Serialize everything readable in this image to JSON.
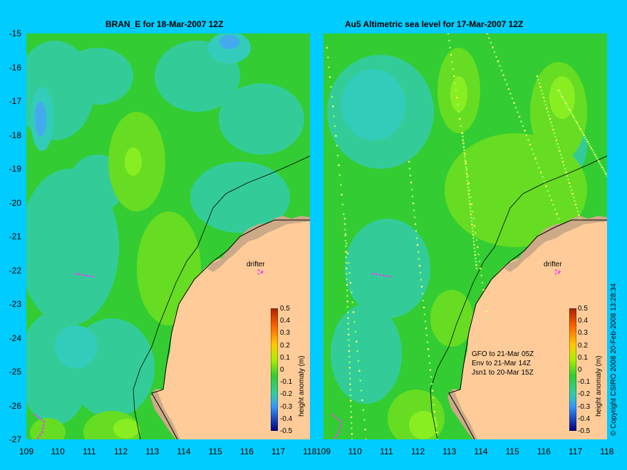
{
  "left_panel": {
    "title": "BRAN_E for 18-Mar-2007 12Z"
  },
  "right_panel": {
    "title": "Au5 Altimetric sea level  for 17-Mar-2007 12Z"
  },
  "y_ticks": [
    "-15",
    "-16",
    "-17",
    "-18",
    "-19",
    "-20",
    "-21",
    "-22",
    "-23",
    "-24",
    "-25",
    "-26",
    "-27"
  ],
  "x_ticks": [
    "109",
    "110",
    "111",
    "112",
    "113",
    "114",
    "115",
    "116",
    "117",
    "118"
  ],
  "colorbar": {
    "label": "height anomaly (m)",
    "ticks": [
      "0.5",
      "0.4",
      "0.3",
      "0.2",
      "0.1",
      "0",
      "-0.1",
      "-0.2",
      "-0.3",
      "-0.4",
      "-0.5"
    ]
  },
  "drifter_label": "drifter",
  "satellites": [
    "GFO to 21-Mar 05Z",
    "Env to 21-Mar 14Z",
    "Jsn1 to 20-Mar 15Z"
  ],
  "copyright": "© Copyright CSIRO 2008    20-Feb-2008 13:28:34",
  "colors": {
    "background": "#00ccff",
    "land": "#ffcc99",
    "sea_base": "#33cc33",
    "drifter": "#ff33ff"
  }
}
